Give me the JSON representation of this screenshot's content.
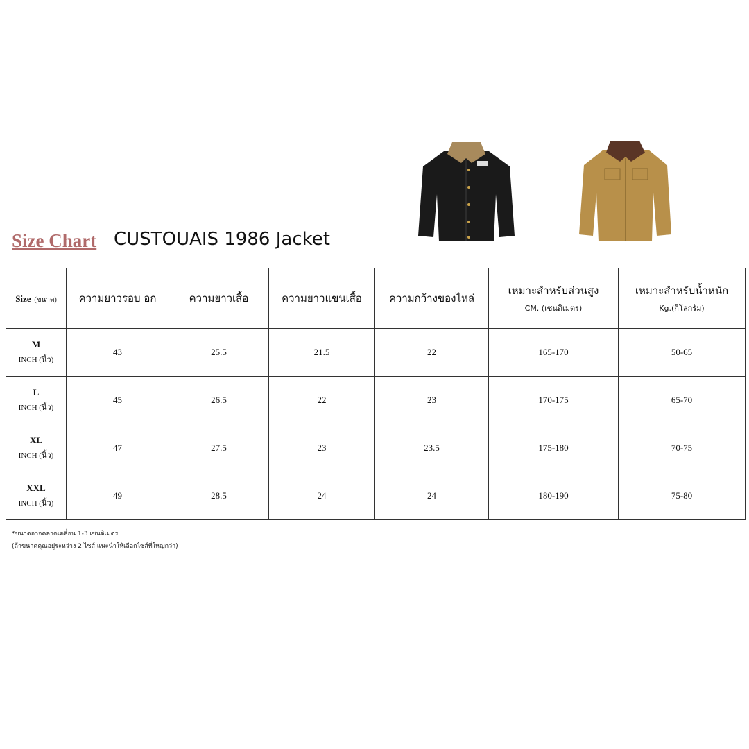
{
  "header": {
    "size_chart_label": "Size Chart",
    "product_name": "CUSTOUAIS 1986 Jacket"
  },
  "images": {
    "black_jacket": "black-corduroy-collar-jacket",
    "tan_jacket": "tan-corduroy-collar-jacket",
    "colors": {
      "black": "#1a1a1a",
      "tan": "#b8904a",
      "collar_brown": "#5a3526",
      "collar_tan": "#a88a5c"
    }
  },
  "table": {
    "size_header": {
      "label": "Size",
      "sub": "(ขนาด)"
    },
    "columns": [
      {
        "label": "ความยาวรอบ อก",
        "sub": ""
      },
      {
        "label": "ความยาวเสื้อ",
        "sub": ""
      },
      {
        "label": "ความยาวแขนเสื้อ",
        "sub": ""
      },
      {
        "label": "ความกว้างของไหล่",
        "sub": ""
      },
      {
        "label": "เหมาะสำหรับส่วนสูง",
        "sub": "CM. (เซนติเมตร)"
      },
      {
        "label": "เหมาะสำหรับน้ำหนัก",
        "sub": "Kg.(กิโลกรัม)"
      }
    ],
    "rows": [
      {
        "size": "M",
        "unit": "INCH (นิ้ว)",
        "values": [
          "43",
          "25.5",
          "21.5",
          "22",
          "165-170",
          "50-65"
        ]
      },
      {
        "size": "L",
        "unit": "INCH (นิ้ว)",
        "values": [
          "45",
          "26.5",
          "22",
          "23",
          "170-175",
          "65-70"
        ]
      },
      {
        "size": "XL",
        "unit": "INCH (นิ้ว)",
        "values": [
          "47",
          "27.5",
          "23",
          "23.5",
          "175-180",
          "70-75"
        ]
      },
      {
        "size": "XXL",
        "unit": "INCH (นิ้ว)",
        "values": [
          "49",
          "28.5",
          "24",
          "24",
          "180-190",
          "75-80"
        ]
      }
    ]
  },
  "notes": [
    "*ขนาดอาจคลาดเคลื่อน 1-3 เซนติเมตร",
    "(ถ้าขนาดคุณอยู่ระหว่าง 2 ไซส์ แนะนำให้เลือกไซส์ที่ใหญ่กว่า)"
  ]
}
